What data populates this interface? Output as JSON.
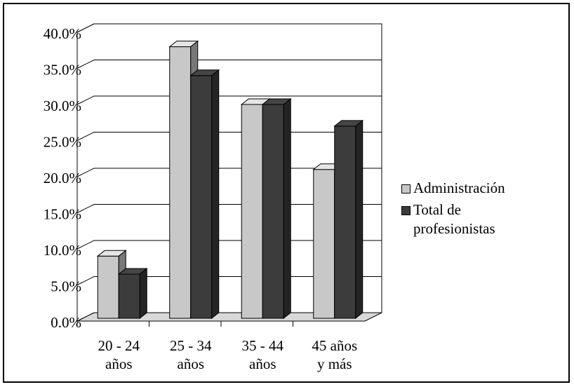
{
  "chart_data": {
    "type": "bar3d",
    "categories": [
      [
        "20 - 24",
        "años"
      ],
      [
        "25 - 34",
        "años"
      ],
      [
        "35 - 44",
        "años"
      ],
      [
        "45 años",
        "y más"
      ]
    ],
    "series": [
      {
        "name": "Administración",
        "color": "#c8c8c8",
        "values": [
          9.0,
          38.0,
          30.0,
          21.0
        ]
      },
      {
        "name": "Total de profesionistas",
        "color": "#3c3c3c",
        "values": [
          6.5,
          34.0,
          30.0,
          27.0
        ]
      }
    ],
    "ylim": [
      0,
      40
    ],
    "yticks": [
      {
        "value": 0,
        "label": "0.0%"
      },
      {
        "value": 5,
        "label": "5.0%"
      },
      {
        "value": 10,
        "label": "10.0%"
      },
      {
        "value": 15,
        "label": "15.0%"
      },
      {
        "value": 20,
        "label": "20.0%"
      },
      {
        "value": 25,
        "label": "25.0%"
      },
      {
        "value": 30,
        "label": "30.0%"
      },
      {
        "value": 35,
        "label": "35.0%"
      },
      {
        "value": 40,
        "label": "40.0%"
      }
    ],
    "grid": true,
    "legend": "right"
  }
}
